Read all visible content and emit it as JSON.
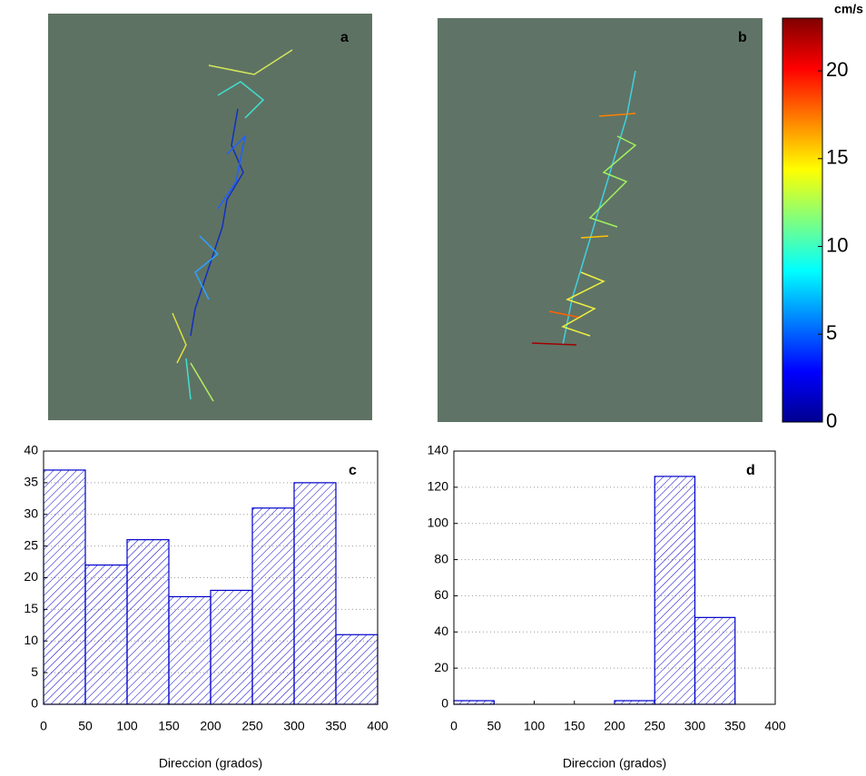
{
  "chart_data": [
    {
      "type": "image",
      "label": "a"
    },
    {
      "type": "image",
      "label": "b"
    },
    {
      "type": "colorbar",
      "label": "cm/s",
      "ylim": [
        0,
        23
      ],
      "yticks": [
        0,
        5,
        10,
        15,
        20
      ]
    },
    {
      "type": "histogram",
      "label": "c",
      "xlabel": "Direccion (grados)",
      "color": "#0000cc",
      "bins": [
        0,
        50,
        100,
        150,
        200,
        250,
        300,
        350,
        400
      ],
      "counts": [
        37,
        22,
        26,
        17,
        18,
        31,
        35,
        11
      ],
      "xlim": [
        0,
        400
      ],
      "xticks": [
        0,
        50,
        100,
        150,
        200,
        250,
        300,
        350,
        400
      ],
      "ylim": [
        0,
        40
      ],
      "yticks": [
        0,
        5,
        10,
        15,
        20,
        25,
        30,
        35,
        40
      ],
      "grid": true
    },
    {
      "type": "histogram",
      "label": "d",
      "xlabel": "Direccion (grados)",
      "color": "#0000cc",
      "bins": [
        0,
        50,
        100,
        150,
        200,
        250,
        300,
        350,
        400
      ],
      "counts": [
        2,
        0,
        0,
        0,
        2,
        126,
        48,
        0
      ],
      "xlim": [
        0,
        400
      ],
      "xticks": [
        0,
        50,
        100,
        150,
        200,
        250,
        300,
        350,
        400
      ],
      "ylim": [
        0,
        140
      ],
      "yticks": [
        0,
        20,
        40,
        60,
        80,
        100,
        120,
        140
      ],
      "grid": true
    }
  ]
}
